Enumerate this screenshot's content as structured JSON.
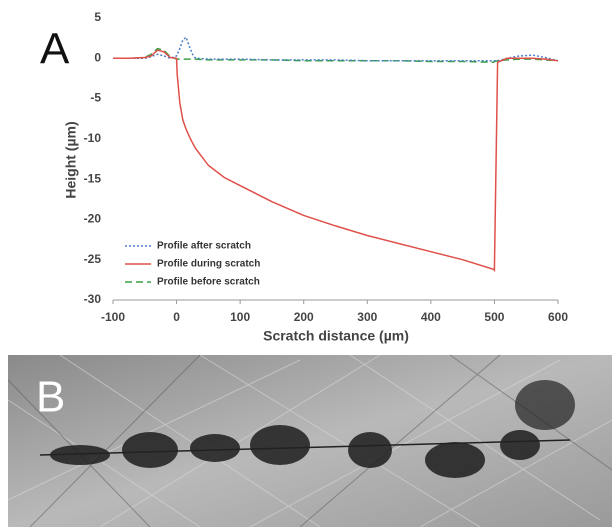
{
  "panels": {
    "a_label": "A",
    "b_label": "B"
  },
  "chart_data": {
    "type": "line",
    "xlabel": "Scratch distance (µm)",
    "ylabel": "Height (µm)",
    "x": [
      -100,
      -75,
      -50,
      -40,
      -30,
      -20,
      -10,
      0,
      1,
      5,
      10,
      15,
      20,
      25,
      30,
      50,
      75,
      100,
      150,
      200,
      250,
      300,
      350,
      400,
      450,
      499,
      500,
      505,
      520,
      540,
      560,
      580,
      600
    ],
    "series": [
      {
        "name": "Profile after scratch",
        "color": "#4a7fc8",
        "dash": "dotted",
        "values": [
          0,
          0,
          0,
          0.2,
          0.5,
          0.3,
          0,
          0.3,
          0.5,
          1.2,
          2.3,
          2.6,
          1.5,
          0.5,
          0,
          -0.1,
          -0.1,
          -0.1,
          -0.2,
          -0.2,
          -0.2,
          -0.3,
          -0.3,
          -0.3,
          -0.3,
          -0.3,
          -0.3,
          -0.3,
          0,
          0.3,
          0.4,
          0.1,
          -0.3
        ]
      },
      {
        "name": "Profile during scratch",
        "color": "#e0504a",
        "dash": "solid",
        "values": [
          0,
          0,
          0.1,
          0.3,
          1.0,
          0.8,
          0.1,
          0,
          -2,
          -5.5,
          -7.7,
          -8.8,
          -9.7,
          -10.5,
          -11.2,
          -13.3,
          -14.8,
          -15.8,
          -17.8,
          -19.5,
          -20.8,
          -22,
          -23,
          -24,
          -25,
          -26.2,
          -26.3,
          -0.5,
          0,
          0,
          0,
          -0.1,
          -0.3
        ]
      },
      {
        "name": "Profile before scratch",
        "color": "#3aa045",
        "dash": "dashed",
        "values": [
          0,
          0,
          0.1,
          0.5,
          1.2,
          1.0,
          0.2,
          -0.1,
          -0.1,
          -0.1,
          -0.1,
          -0.1,
          -0.1,
          -0.1,
          -0.1,
          -0.2,
          -0.2,
          -0.2,
          -0.2,
          -0.3,
          -0.3,
          -0.3,
          -0.3,
          -0.4,
          -0.4,
          -0.5,
          -0.4,
          -0.3,
          -0.2,
          -0.1,
          -0.1,
          -0.2,
          -0.3
        ]
      }
    ],
    "xlim": [
      -100,
      600
    ],
    "xticks": [
      -100,
      0,
      100,
      200,
      300,
      400,
      500,
      600
    ],
    "ylim": [
      -30,
      5
    ],
    "yticks": [
      5,
      0,
      -5,
      -10,
      -15,
      -20,
      -25,
      -30
    ],
    "legend": "lower-left"
  }
}
